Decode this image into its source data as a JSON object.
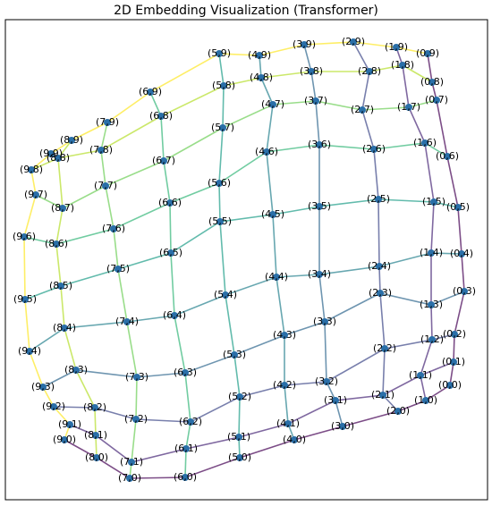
{
  "chart_data": {
    "type": "scatter",
    "title": "2D Embedding Visualization (Transformer)",
    "labels": [
      "(0,0)",
      "(0,1)",
      "(0,2)",
      "(0,3)",
      "(0,4)",
      "(0,5)",
      "(0,6)",
      "(0,7)",
      "(0,8)",
      "(0,9)",
      "(1,0)",
      "(1,1)",
      "(1,2)",
      "(1,3)",
      "(1,4)",
      "(1,5)",
      "(1,6)",
      "(1,7)",
      "(1,8)",
      "(1,9)",
      "(2,0)",
      "(2,1)",
      "(2,2)",
      "(2,3)",
      "(2,4)",
      "(2,5)",
      "(2,6)",
      "(2,7)",
      "(2,8)",
      "(2,9)",
      "(3,0)",
      "(3,1)",
      "(3,2)",
      "(3,3)",
      "(3,4)",
      "(3,5)",
      "(3,6)",
      "(3,7)",
      "(3,8)",
      "(3,9)",
      "(4,0)",
      "(4,1)",
      "(4,2)",
      "(4,3)",
      "(4,4)",
      "(4,5)",
      "(4,6)",
      "(4,7)",
      "(4,8)",
      "(4,9)",
      "(5,0)",
      "(5,1)",
      "(5,2)",
      "(5,3)",
      "(5,4)",
      "(5,5)",
      "(5,6)",
      "(5,7)",
      "(5,8)",
      "(5,9)",
      "(6,0)",
      "(6,1)",
      "(6,2)",
      "(6,3)",
      "(6,4)",
      "(6,5)",
      "(6,6)",
      "(6,7)",
      "(6,8)",
      "(6,9)",
      "(7,0)",
      "(7,1)",
      "(7,2)",
      "(7,3)",
      "(7,4)",
      "(7,5)",
      "(7,6)",
      "(7,7)",
      "(7,8)",
      "(7,9)",
      "(8,0)",
      "(8,1)",
      "(8,2)",
      "(8,3)",
      "(8,4)",
      "(8,5)",
      "(8,6)",
      "(8,7)",
      "(8,8)",
      "(8,9)",
      "(9,0)",
      "(9,1)",
      "(9,2)",
      "(9,3)",
      "(9,4)",
      "(9,5)",
      "(9,6)",
      "(9,7)",
      "(9,8)",
      "(9,9)"
    ],
    "x": [
      503,
      507,
      508,
      519,
      516,
      512,
      500,
      488,
      483,
      478,
      476,
      470,
      483,
      482,
      482,
      485,
      475,
      457,
      450,
      443,
      445,
      428,
      430,
      425,
      424,
      423,
      418,
      405,
      413,
      395,
      383,
      375,
      365,
      363,
      357,
      357,
      357,
      353,
      348,
      340,
      329,
      322,
      318,
      318,
      309,
      305,
      298,
      305,
      292,
      290,
      268,
      267,
      268,
      262,
      252,
      246,
      245,
      249,
      250,
      245,
      207,
      208,
      213,
      207,
      195,
      191,
      190,
      183,
      180,
      168,
      145,
      147,
      152,
      153,
      142,
      132,
      127,
      118,
      113,
      120,
      108,
      107,
      106,
      85,
      72,
      68,
      63,
      70,
      65,
      80,
      72,
      78,
      60,
      48,
      33,
      28,
      27,
      40,
      35,
      57
    ],
    "y": [
      431,
      405,
      374,
      326,
      284,
      232,
      175,
      112,
      92,
      60,
      448,
      420,
      380,
      341,
      283,
      226,
      160,
      120,
      73,
      53,
      460,
      442,
      390,
      328,
      298,
      223,
      167,
      123,
      80,
      47,
      477,
      448,
      427,
      360,
      307,
      231,
      162,
      113,
      80,
      50,
      492,
      474,
      431,
      375,
      310,
      240,
      170,
      117,
      87,
      62,
      512,
      489,
      444,
      397,
      330,
      248,
      205,
      143,
      96,
      60,
      534,
      502,
      472,
      417,
      353,
      283,
      227,
      180,
      130,
      103,
      535,
      517,
      469,
      422,
      360,
      301,
      256,
      208,
      168,
      137,
      512,
      487,
      456,
      414,
      367,
      320,
      273,
      233,
      177,
      157,
      492,
      475,
      455,
      433,
      393,
      335,
      265,
      218,
      190,
      172
    ],
    "point_color": "#2a6fa8",
    "line_colors": [
      "#440154",
      "#482878",
      "#3e4989",
      "#31688e",
      "#26828e",
      "#1f9e89",
      "#35b779",
      "#6ece58",
      "#b5de2b",
      "#fde725"
    ]
  }
}
